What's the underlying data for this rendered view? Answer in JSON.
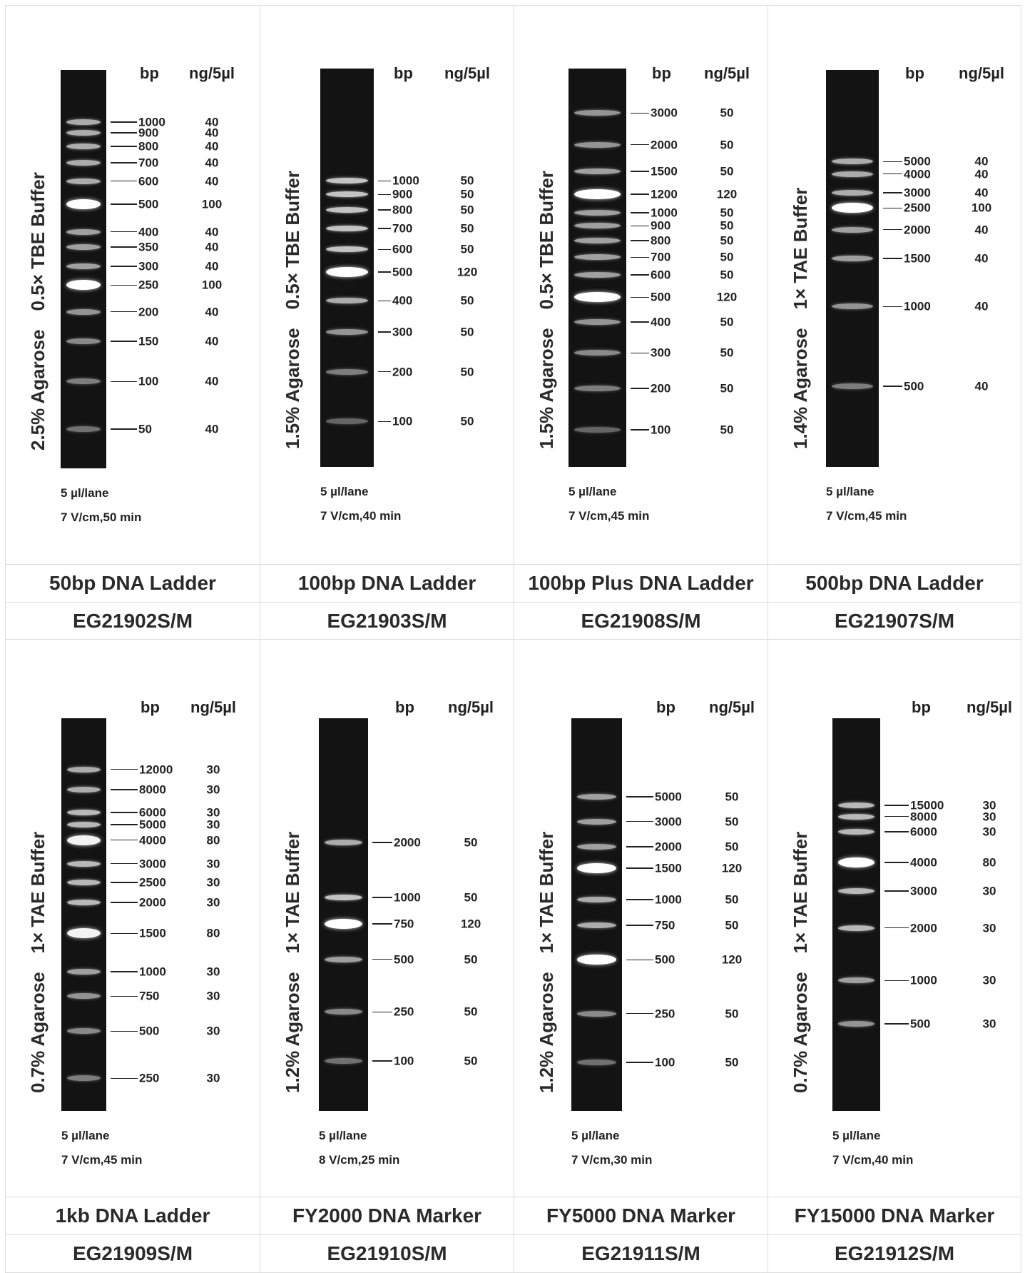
{
  "column_headers": {
    "bp": "bp",
    "ng": "ng/5µl"
  },
  "ladders": [
    {
      "name": "50bp DNA Ladder",
      "catalog": "EG21902S/M",
      "gel": "2.5% Agarose",
      "buffer": "0.5× TBE Buffer",
      "loading": "5 µl/lane",
      "run": "7 V/cm,50 min",
      "bands": [
        {
          "bp": "1000",
          "ng": "40",
          "rel": 0.131,
          "bright": 0.65
        },
        {
          "bp": "900",
          "ng": "40",
          "rel": 0.158,
          "bright": 0.65
        },
        {
          "bp": "800",
          "ng": "40",
          "rel": 0.192,
          "bright": 0.65
        },
        {
          "bp": "700",
          "ng": "40",
          "rel": 0.233,
          "bright": 0.65
        },
        {
          "bp": "600",
          "ng": "40",
          "rel": 0.279,
          "bright": 0.65
        },
        {
          "bp": "500",
          "ng": "100",
          "rel": 0.337,
          "bright": 1.0
        },
        {
          "bp": "400",
          "ng": "40",
          "rel": 0.406,
          "bright": 0.6
        },
        {
          "bp": "350",
          "ng": "40",
          "rel": 0.444,
          "bright": 0.6
        },
        {
          "bp": "300",
          "ng": "40",
          "rel": 0.493,
          "bright": 0.6
        },
        {
          "bp": "250",
          "ng": "100",
          "rel": 0.54,
          "bright": 1.0
        },
        {
          "bp": "200",
          "ng": "40",
          "rel": 0.607,
          "bright": 0.55
        },
        {
          "bp": "150",
          "ng": "40",
          "rel": 0.681,
          "bright": 0.5
        },
        {
          "bp": "100",
          "ng": "40",
          "rel": 0.782,
          "bright": 0.45
        },
        {
          "bp": "50",
          "ng": "40",
          "rel": 0.901,
          "bright": 0.4
        }
      ]
    },
    {
      "name": "100bp DNA Ladder",
      "catalog": "EG21903S/M",
      "gel": "1.5% Agarose",
      "buffer": "0.5× TBE Buffer",
      "loading": "5 µl/lane",
      "run": "7 V/cm,40 min",
      "bands": [
        {
          "bp": "1000",
          "ng": "50",
          "rel": 0.282,
          "bright": 0.75
        },
        {
          "bp": "900",
          "ng": "50",
          "rel": 0.316,
          "bright": 0.75
        },
        {
          "bp": "800",
          "ng": "50",
          "rel": 0.355,
          "bright": 0.75
        },
        {
          "bp": "700",
          "ng": "50",
          "rel": 0.401,
          "bright": 0.75
        },
        {
          "bp": "600",
          "ng": "50",
          "rel": 0.454,
          "bright": 0.75
        },
        {
          "bp": "500",
          "ng": "120",
          "rel": 0.511,
          "bright": 1.0
        },
        {
          "bp": "400",
          "ng": "50",
          "rel": 0.583,
          "bright": 0.65
        },
        {
          "bp": "300",
          "ng": "50",
          "rel": 0.661,
          "bright": 0.55
        },
        {
          "bp": "200",
          "ng": "50",
          "rel": 0.761,
          "bright": 0.45
        },
        {
          "bp": "100",
          "ng": "50",
          "rel": 0.886,
          "bright": 0.35
        }
      ]
    },
    {
      "name": "100bp Plus DNA Ladder",
      "catalog": "EG21908S/M",
      "gel": "1.5% Agarose",
      "buffer": "0.5× TBE Buffer",
      "loading": "5 µl/lane",
      "run": "7 V/cm,45 min",
      "bands": [
        {
          "bp": "3000",
          "ng": "50",
          "rel": 0.112,
          "bright": 0.55
        },
        {
          "bp": "2000",
          "ng": "50",
          "rel": 0.191,
          "bright": 0.55
        },
        {
          "bp": "1500",
          "ng": "50",
          "rel": 0.258,
          "bright": 0.6
        },
        {
          "bp": "1200",
          "ng": "120",
          "rel": 0.315,
          "bright": 1.0
        },
        {
          "bp": "1000",
          "ng": "50",
          "rel": 0.362,
          "bright": 0.6
        },
        {
          "bp": "900",
          "ng": "50",
          "rel": 0.395,
          "bright": 0.6
        },
        {
          "bp": "800",
          "ng": "50",
          "rel": 0.432,
          "bright": 0.6
        },
        {
          "bp": "700",
          "ng": "50",
          "rel": 0.474,
          "bright": 0.6
        },
        {
          "bp": "600",
          "ng": "50",
          "rel": 0.518,
          "bright": 0.6
        },
        {
          "bp": "500",
          "ng": "120",
          "rel": 0.574,
          "bright": 1.0
        },
        {
          "bp": "400",
          "ng": "50",
          "rel": 0.636,
          "bright": 0.55
        },
        {
          "bp": "300",
          "ng": "50",
          "rel": 0.714,
          "bright": 0.5
        },
        {
          "bp": "200",
          "ng": "50",
          "rel": 0.803,
          "bright": 0.45
        },
        {
          "bp": "100",
          "ng": "50",
          "rel": 0.907,
          "bright": 0.35
        }
      ]
    },
    {
      "name": "500bp DNA Ladder",
      "catalog": "EG21907S/M",
      "gel": "1.4% Agarose",
      "buffer": "1× TAE Buffer",
      "loading": "5 µl/lane",
      "run": "7 V/cm,45 min",
      "bands": [
        {
          "bp": "5000",
          "ng": "40",
          "rel": 0.231,
          "bright": 0.65
        },
        {
          "bp": "4000",
          "ng": "40",
          "rel": 0.262,
          "bright": 0.65
        },
        {
          "bp": "3000",
          "ng": "40",
          "rel": 0.309,
          "bright": 0.65
        },
        {
          "bp": "2500",
          "ng": "100",
          "rel": 0.348,
          "bright": 1.0
        },
        {
          "bp": "2000",
          "ng": "40",
          "rel": 0.402,
          "bright": 0.6
        },
        {
          "bp": "1500",
          "ng": "40",
          "rel": 0.475,
          "bright": 0.6
        },
        {
          "bp": "1000",
          "ng": "40",
          "rel": 0.596,
          "bright": 0.55
        },
        {
          "bp": "500",
          "ng": "40",
          "rel": 0.797,
          "bright": 0.45
        }
      ]
    },
    {
      "name": "1kb DNA Ladder",
      "catalog": "EG21909S/M",
      "gel": "0.7% Agarose",
      "buffer": "1× TAE Buffer",
      "loading": "5 µl/lane",
      "run": "7 V/cm,45 min",
      "bands": [
        {
          "bp": "12000",
          "ng": "30",
          "rel": 0.13,
          "bright": 0.65
        },
        {
          "bp": "8000",
          "ng": "30",
          "rel": 0.182,
          "bright": 0.65
        },
        {
          "bp": "6000",
          "ng": "30",
          "rel": 0.24,
          "bright": 0.7
        },
        {
          "bp": "5000",
          "ng": "30",
          "rel": 0.271,
          "bright": 0.7
        },
        {
          "bp": "4000",
          "ng": "80",
          "rel": 0.31,
          "bright": 0.95
        },
        {
          "bp": "3000",
          "ng": "30",
          "rel": 0.37,
          "bright": 0.7
        },
        {
          "bp": "2500",
          "ng": "30",
          "rel": 0.418,
          "bright": 0.7
        },
        {
          "bp": "2000",
          "ng": "30",
          "rel": 0.469,
          "bright": 0.7
        },
        {
          "bp": "1500",
          "ng": "80",
          "rel": 0.548,
          "bright": 0.95
        },
        {
          "bp": "1000",
          "ng": "30",
          "rel": 0.645,
          "bright": 0.6
        },
        {
          "bp": "750",
          "ng": "30",
          "rel": 0.708,
          "bright": 0.55
        },
        {
          "bp": "500",
          "ng": "30",
          "rel": 0.797,
          "bright": 0.5
        },
        {
          "bp": "250",
          "ng": "30",
          "rel": 0.917,
          "bright": 0.45
        }
      ]
    },
    {
      "name": "FY2000 DNA Marker",
      "catalog": "EG21910S/M",
      "gel": "1.2% Agarose",
      "buffer": "1× TAE Buffer",
      "loading": "5 µl/lane",
      "run": "8 V/cm,25 min",
      "bands": [
        {
          "bp": "2000",
          "ng": "50",
          "rel": 0.316,
          "bright": 0.65
        },
        {
          "bp": "1000",
          "ng": "50",
          "rel": 0.456,
          "bright": 0.75
        },
        {
          "bp": "750",
          "ng": "120",
          "rel": 0.524,
          "bright": 1.0
        },
        {
          "bp": "500",
          "ng": "50",
          "rel": 0.614,
          "bright": 0.6
        },
        {
          "bp": "250",
          "ng": "50",
          "rel": 0.748,
          "bright": 0.5
        },
        {
          "bp": "100",
          "ng": "50",
          "rel": 0.873,
          "bright": 0.4
        }
      ]
    },
    {
      "name": "FY5000 DNA Marker",
      "catalog": "EG21911S/M",
      "gel": "1.2% Agarose",
      "buffer": "1× TAE Buffer",
      "loading": "5 µl/lane",
      "run": "7 V/cm,30 min",
      "bands": [
        {
          "bp": "5000",
          "ng": "50",
          "rel": 0.2,
          "bright": 0.6
        },
        {
          "bp": "3000",
          "ng": "50",
          "rel": 0.263,
          "bright": 0.6
        },
        {
          "bp": "2000",
          "ng": "50",
          "rel": 0.327,
          "bright": 0.6
        },
        {
          "bp": "1500",
          "ng": "120",
          "rel": 0.382,
          "bright": 1.0
        },
        {
          "bp": "1000",
          "ng": "50",
          "rel": 0.462,
          "bright": 0.65
        },
        {
          "bp": "750",
          "ng": "50",
          "rel": 0.527,
          "bright": 0.65
        },
        {
          "bp": "500",
          "ng": "120",
          "rel": 0.615,
          "bright": 1.0
        },
        {
          "bp": "250",
          "ng": "50",
          "rel": 0.752,
          "bright": 0.5
        },
        {
          "bp": "100",
          "ng": "50",
          "rel": 0.876,
          "bright": 0.4
        }
      ]
    },
    {
      "name": "FY15000 DNA Marker",
      "catalog": "EG21912S/M",
      "gel": "0.7% Agarose",
      "buffer": "1× TAE Buffer",
      "loading": "5 µl/lane",
      "run": "7 V/cm,40 min",
      "bands": [
        {
          "bp": "15000",
          "ng": "30",
          "rel": 0.222,
          "bright": 0.7
        },
        {
          "bp": "8000",
          "ng": "30",
          "rel": 0.25,
          "bright": 0.7
        },
        {
          "bp": "6000",
          "ng": "30",
          "rel": 0.289,
          "bright": 0.7
        },
        {
          "bp": "4000",
          "ng": "80",
          "rel": 0.367,
          "bright": 1.0
        },
        {
          "bp": "3000",
          "ng": "30",
          "rel": 0.44,
          "bright": 0.7
        },
        {
          "bp": "2000",
          "ng": "30",
          "rel": 0.534,
          "bright": 0.7
        },
        {
          "bp": "1000",
          "ng": "30",
          "rel": 0.668,
          "bright": 0.6
        },
        {
          "bp": "500",
          "ng": "30",
          "rel": 0.778,
          "bright": 0.55
        }
      ]
    }
  ]
}
